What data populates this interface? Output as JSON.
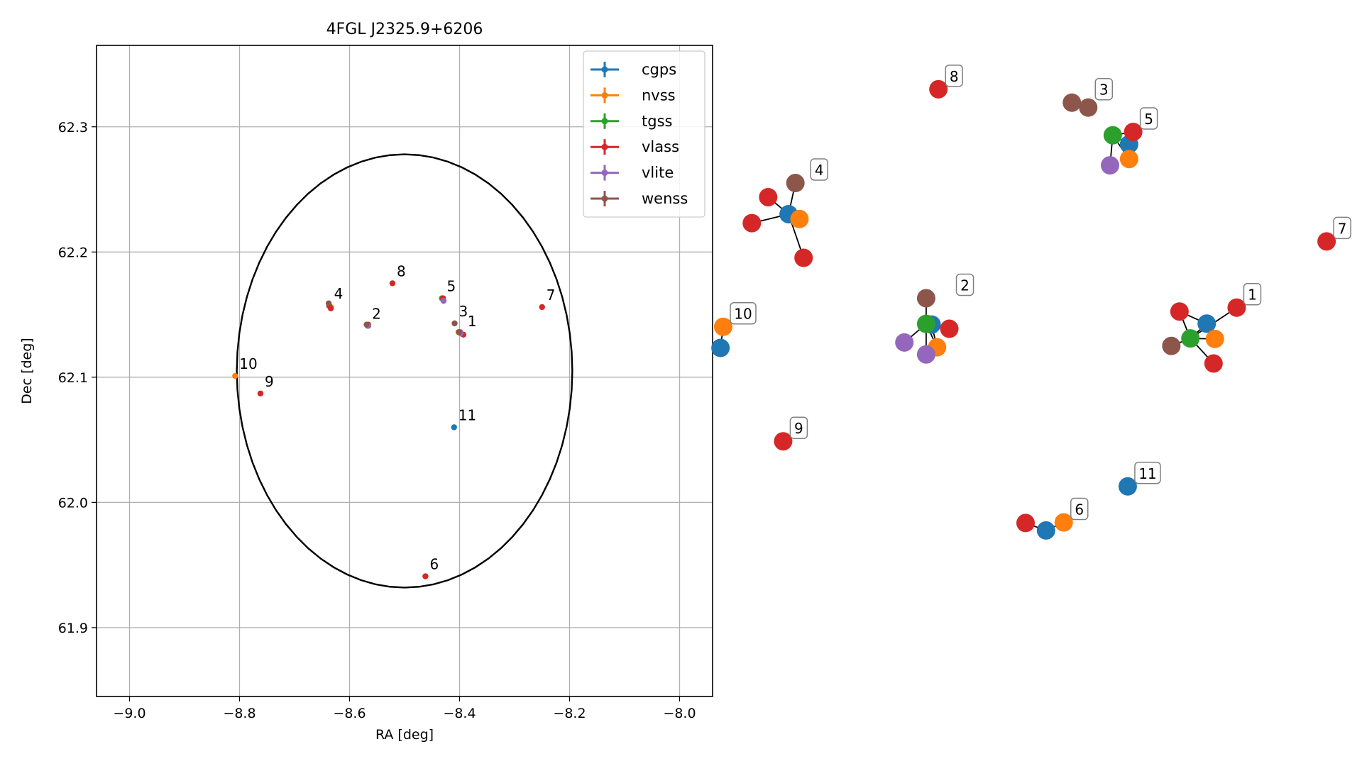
{
  "chart_data": [
    {
      "type": "scatter",
      "title": "4FGL J2325.9+6206",
      "xlabel": "RA [deg]",
      "ylabel": "Dec [deg]",
      "xlim": [
        -9.06,
        -7.94
      ],
      "ylim": [
        61.845,
        62.365
      ],
      "xticks": [
        -9.0,
        -8.8,
        -8.6,
        -8.4,
        -8.2,
        -8.0
      ],
      "xtick_labels": [
        "−9.0",
        "−8.8",
        "−8.6",
        "−8.4",
        "−8.2",
        "−8.0"
      ],
      "yticks": [
        61.9,
        62.0,
        62.1,
        62.2,
        62.3
      ],
      "ytick_labels": [
        "61.9",
        "62.0",
        "62.1",
        "62.2",
        "62.3"
      ],
      "grid": true,
      "legend_position": "upper right",
      "ellipse": {
        "center": [
          -8.5,
          62.105
        ],
        "ra_halfwidth": 0.305,
        "dec_halfwidth": 0.173
      },
      "series": [
        {
          "name": "cgps",
          "color": "#1f77b4",
          "points": [
            [
              -8.41,
              62.06
            ]
          ]
        },
        {
          "name": "nvss",
          "color": "#ff7f0e",
          "points": [
            [
              -8.808,
              62.101
            ],
            [
              -8.462,
              61.941
            ],
            [
              -8.402,
              62.136
            ],
            [
              -8.432,
              62.163
            ],
            [
              -8.634,
              62.156
            ],
            [
              -8.566,
              62.141
            ]
          ]
        },
        {
          "name": "tgss",
          "color": "#2ca02c",
          "points": [
            [
              -8.398,
              62.135
            ],
            [
              -8.432,
              62.163
            ],
            [
              -8.567,
              62.141
            ]
          ]
        },
        {
          "name": "vlass",
          "color": "#d62728",
          "points": [
            [
              -8.399,
              62.136
            ],
            [
              -8.393,
              62.134
            ],
            [
              -8.566,
              62.142
            ],
            [
              -8.634,
              62.155
            ],
            [
              -8.43,
              62.163
            ],
            [
              -8.462,
              61.941
            ],
            [
              -8.25,
              62.156
            ],
            [
              -8.522,
              62.175
            ],
            [
              -8.762,
              62.087
            ],
            [
              -8.637,
              62.157
            ]
          ]
        },
        {
          "name": "vlite",
          "color": "#9467bd",
          "points": [
            [
              -8.566,
              62.141
            ],
            [
              -8.429,
              62.161
            ],
            [
              -8.398,
              62.135
            ]
          ]
        },
        {
          "name": "wenss",
          "color": "#8c564b",
          "points": [
            [
              -8.409,
              62.143
            ],
            [
              -8.638,
              62.159
            ],
            [
              -8.569,
              62.142
            ],
            [
              -8.401,
              62.136
            ]
          ]
        }
      ],
      "annotations": [
        {
          "text": "1",
          "x": -8.393,
          "y": 62.135
        },
        {
          "text": "2",
          "x": -8.567,
          "y": 62.141
        },
        {
          "text": "3",
          "x": -8.409,
          "y": 62.143
        },
        {
          "text": "4",
          "x": -8.636,
          "y": 62.157
        },
        {
          "text": "5",
          "x": -8.431,
          "y": 62.163
        },
        {
          "text": "6",
          "x": -8.462,
          "y": 61.941
        },
        {
          "text": "7",
          "x": -8.25,
          "y": 62.156
        },
        {
          "text": "8",
          "x": -8.522,
          "y": 62.175
        },
        {
          "text": "9",
          "x": -8.762,
          "y": 62.087
        },
        {
          "text": "10",
          "x": -8.808,
          "y": 62.101
        },
        {
          "text": "11",
          "x": -8.41,
          "y": 62.06
        }
      ]
    },
    {
      "type": "network",
      "series_colors": {
        "cgps": "#1f77b4",
        "nvss": "#ff7f0e",
        "tgss": "#2ca02c",
        "vlass": "#d62728",
        "vlite": "#9467bd",
        "wenss": "#8c564b"
      },
      "node_colors_order": [
        "cgps",
        "nvss",
        "tgss",
        "vlass",
        "vlite",
        "wenss"
      ],
      "clusters": [
        {
          "label": "1",
          "nodes": [
            [
              "cgps",
              0.886,
              0.4225
            ],
            [
              "nvss",
              0.892,
              0.4425
            ],
            [
              "tgss",
              0.874,
              0.4418
            ],
            [
              "vlass",
              0.866,
              0.4067
            ],
            [
              "vlass",
              0.908,
              0.4016
            ],
            [
              "vlass",
              0.891,
              0.4745
            ],
            [
              "wenss",
              0.86,
              0.4516
            ]
          ],
          "edges": [
            [
              2,
              0
            ],
            [
              2,
              1
            ],
            [
              2,
              3
            ],
            [
              2,
              4
            ],
            [
              2,
              5
            ],
            [
              2,
              6
            ],
            [
              0,
              1
            ],
            [
              0,
              3
            ]
          ]
        },
        {
          "label": "2",
          "nodes": [
            [
              "cgps",
              0.684,
              0.4237
            ],
            [
              "nvss",
              0.688,
              0.4534
            ],
            [
              "tgss",
              0.68,
              0.4228
            ],
            [
              "vlass",
              0.697,
              0.4292
            ],
            [
              "vlite",
              0.664,
              0.4471
            ],
            [
              "vlite",
              0.68,
              0.4627
            ],
            [
              "wenss",
              0.68,
              0.3893
            ]
          ],
          "edges": [
            [
              2,
              0
            ],
            [
              2,
              1
            ],
            [
              2,
              3
            ],
            [
              2,
              4
            ],
            [
              2,
              5
            ],
            [
              2,
              6
            ],
            [
              0,
              1
            ]
          ]
        },
        {
          "label": "3",
          "nodes": [
            [
              "wenss",
              0.787,
              0.134
            ],
            [
              "wenss",
              0.799,
              0.1404
            ]
          ],
          "edges": [
            [
              0,
              1
            ]
          ]
        },
        {
          "label": "4",
          "nodes": [
            [
              "cgps",
              0.579,
              0.2796
            ],
            [
              "nvss",
              0.587,
              0.2859
            ],
            [
              "vlass",
              0.552,
              0.2913
            ],
            [
              "vlass",
              0.59,
              0.3366
            ],
            [
              "vlass",
              0.564,
              0.2574
            ],
            [
              "wenss",
              0.584,
              0.2389
            ]
          ],
          "edges": [
            [
              0,
              1
            ],
            [
              0,
              2
            ],
            [
              0,
              3
            ],
            [
              0,
              4
            ],
            [
              0,
              5
            ]
          ]
        },
        {
          "label": "5",
          "nodes": [
            [
              "cgps",
              0.829,
              0.1884
            ],
            [
              "nvss",
              0.829,
              0.2076
            ],
            [
              "tgss",
              0.817,
              0.1766
            ],
            [
              "vlass",
              0.832,
              0.1722
            ],
            [
              "vlite",
              0.815,
              0.2158
            ]
          ],
          "edges": [
            [
              2,
              0
            ],
            [
              2,
              1
            ],
            [
              2,
              3
            ],
            [
              2,
              4
            ]
          ]
        },
        {
          "label": "6",
          "nodes": [
            [
              "cgps",
              0.768,
              0.6925
            ],
            [
              "nvss",
              0.781,
              0.682
            ],
            [
              "vlass",
              0.753,
              0.6828
            ]
          ],
          "edges": [
            [
              0,
              1
            ],
            [
              0,
              2
            ]
          ]
        },
        {
          "label": "7",
          "nodes": [
            [
              "vlass",
              0.974,
              0.3152
            ]
          ],
          "edges": []
        },
        {
          "label": "8",
          "nodes": [
            [
              "vlass",
              0.689,
              0.1165
            ]
          ],
          "edges": []
        },
        {
          "label": "9",
          "nodes": [
            [
              "vlass",
              0.575,
              0.5761
            ]
          ],
          "edges": []
        },
        {
          "label": "10",
          "nodes": [
            [
              "cgps",
              0.529,
              0.4542
            ],
            [
              "nvss",
              0.531,
              0.4266
            ]
          ],
          "edges": [
            [
              0,
              1
            ]
          ]
        },
        {
          "label": "11",
          "nodes": [
            [
              "cgps",
              0.828,
              0.635
            ]
          ],
          "edges": []
        }
      ]
    }
  ]
}
